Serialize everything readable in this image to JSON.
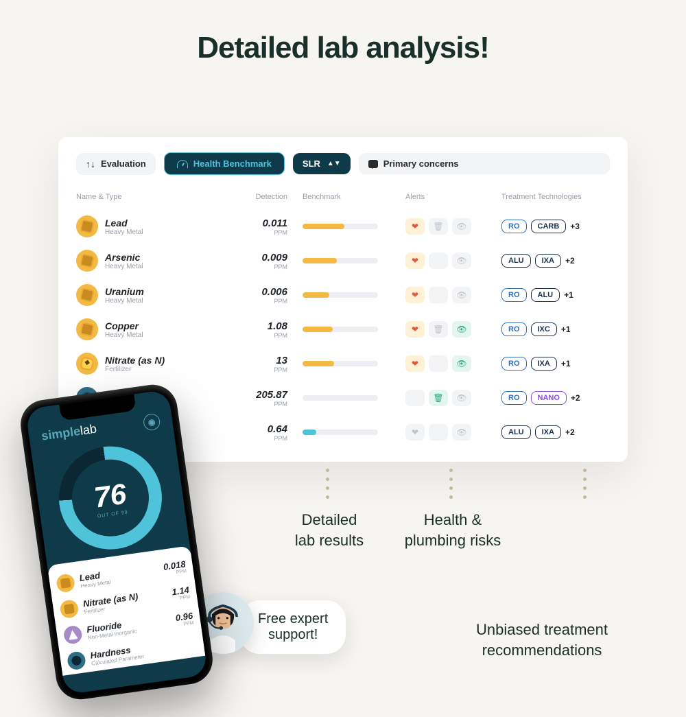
{
  "headline": "Detailed lab analysis!",
  "toolbar": {
    "evaluation": "Evaluation",
    "health_benchmark": "Health Benchmark",
    "selector": "SLR",
    "primary_concerns": "Primary concerns"
  },
  "columns": {
    "name": "Name & Type",
    "detection": "Detection",
    "benchmark": "Benchmark",
    "alerts": "Alerts",
    "treatment": "Treatment Technologies"
  },
  "rows": [
    {
      "name": "Lead",
      "type": "Heavy Metal",
      "icon": "gold",
      "value": "0.011",
      "unit": "PPM",
      "bar_pct": 55,
      "bar_color": "#f4b942",
      "alerts": [
        "health",
        "trash-dim",
        "eye-dim"
      ],
      "treatments": [
        {
          "label": "RO",
          "c": "blue"
        },
        {
          "label": "CARB",
          "c": "navy"
        }
      ],
      "more": "+3"
    },
    {
      "name": "Arsenic",
      "type": "Heavy Metal",
      "icon": "gold",
      "value": "0.009",
      "unit": "PPM",
      "bar_pct": 45,
      "bar_color": "#f4b942",
      "alerts": [
        "health",
        "blank-dim",
        "eye-dim"
      ],
      "treatments": [
        {
          "label": "ALU",
          "c": "navy"
        },
        {
          "label": "IXA",
          "c": "navy"
        }
      ],
      "more": "+2"
    },
    {
      "name": "Uranium",
      "type": "Heavy Metal",
      "icon": "gold",
      "value": "0.006",
      "unit": "PPM",
      "bar_pct": 35,
      "bar_color": "#f4b942",
      "alerts": [
        "health",
        "blank-dim",
        "eye-dim"
      ],
      "treatments": [
        {
          "label": "RO",
          "c": "blue"
        },
        {
          "label": "ALU",
          "c": "navy"
        }
      ],
      "more": "+1"
    },
    {
      "name": "Copper",
      "type": "Heavy Metal",
      "icon": "gold",
      "value": "1.08",
      "unit": "PPM",
      "bar_pct": 40,
      "bar_color": "#f4b942",
      "alerts": [
        "health",
        "trash-dim",
        "eye-grn"
      ],
      "treatments": [
        {
          "label": "RO",
          "c": "blue"
        },
        {
          "label": "IXC",
          "c": "navy"
        }
      ],
      "more": "+1"
    },
    {
      "name": "Nitrate (as N)",
      "type": "Fertilizer",
      "icon": "gold-nitro",
      "value": "13",
      "unit": "PPM",
      "bar_pct": 42,
      "bar_color": "#f4b942",
      "alerts": [
        "health",
        "blank-dim",
        "eye-grn"
      ],
      "treatments": [
        {
          "label": "RO",
          "c": "blue"
        },
        {
          "label": "IXA",
          "c": "navy"
        }
      ],
      "more": "+1"
    },
    {
      "name": "ss",
      "type": "ameter",
      "icon": "blue",
      "value": "205.87",
      "unit": "PPM",
      "bar_pct": 0,
      "bar_color": "#f4b942",
      "alerts": [
        "blank",
        "trash-grn",
        "eye-dim"
      ],
      "treatments": [
        {
          "label": "RO",
          "c": "blue"
        },
        {
          "label": "NANO",
          "c": "purple"
        }
      ],
      "more": "+2"
    },
    {
      "name": "",
      "type": "",
      "icon": "blue",
      "value": "0.64",
      "unit": "PPM",
      "bar_pct": 18,
      "bar_color": "#4fc3d9",
      "alerts": [
        "health-dim",
        "blank-dim",
        "eye-dim"
      ],
      "treatments": [
        {
          "label": "ALU",
          "c": "navy"
        },
        {
          "label": "IXA",
          "c": "navy"
        }
      ],
      "more": "+2"
    }
  ],
  "phone": {
    "brand_a": "simple",
    "brand_b": "lab",
    "score": "76",
    "score_label": "OUT OF 99",
    "items": [
      {
        "name": "Lead",
        "sub": "Heavy Metal",
        "icon": "gold",
        "value": "0.018",
        "unit": "PPM"
      },
      {
        "name": "Nitrate (as N)",
        "sub": "Fertilizer",
        "icon": "gold",
        "value": "1.14",
        "unit": "PPM"
      },
      {
        "name": "Fluoride",
        "sub": "Non-Metal Inorganic",
        "icon": "lav",
        "value": "0.96",
        "unit": "PPM"
      },
      {
        "name": "Hardness",
        "sub": "Calculated Parameter",
        "icon": "teal",
        "value": "",
        "unit": ""
      }
    ]
  },
  "callouts": {
    "lab_results": "Detailed\nlab results",
    "health_risks": "Health &\nplumbing risks",
    "expert": "Free expert\nsupport!",
    "treatment": "Unbiased treatment\nrecommendations"
  }
}
